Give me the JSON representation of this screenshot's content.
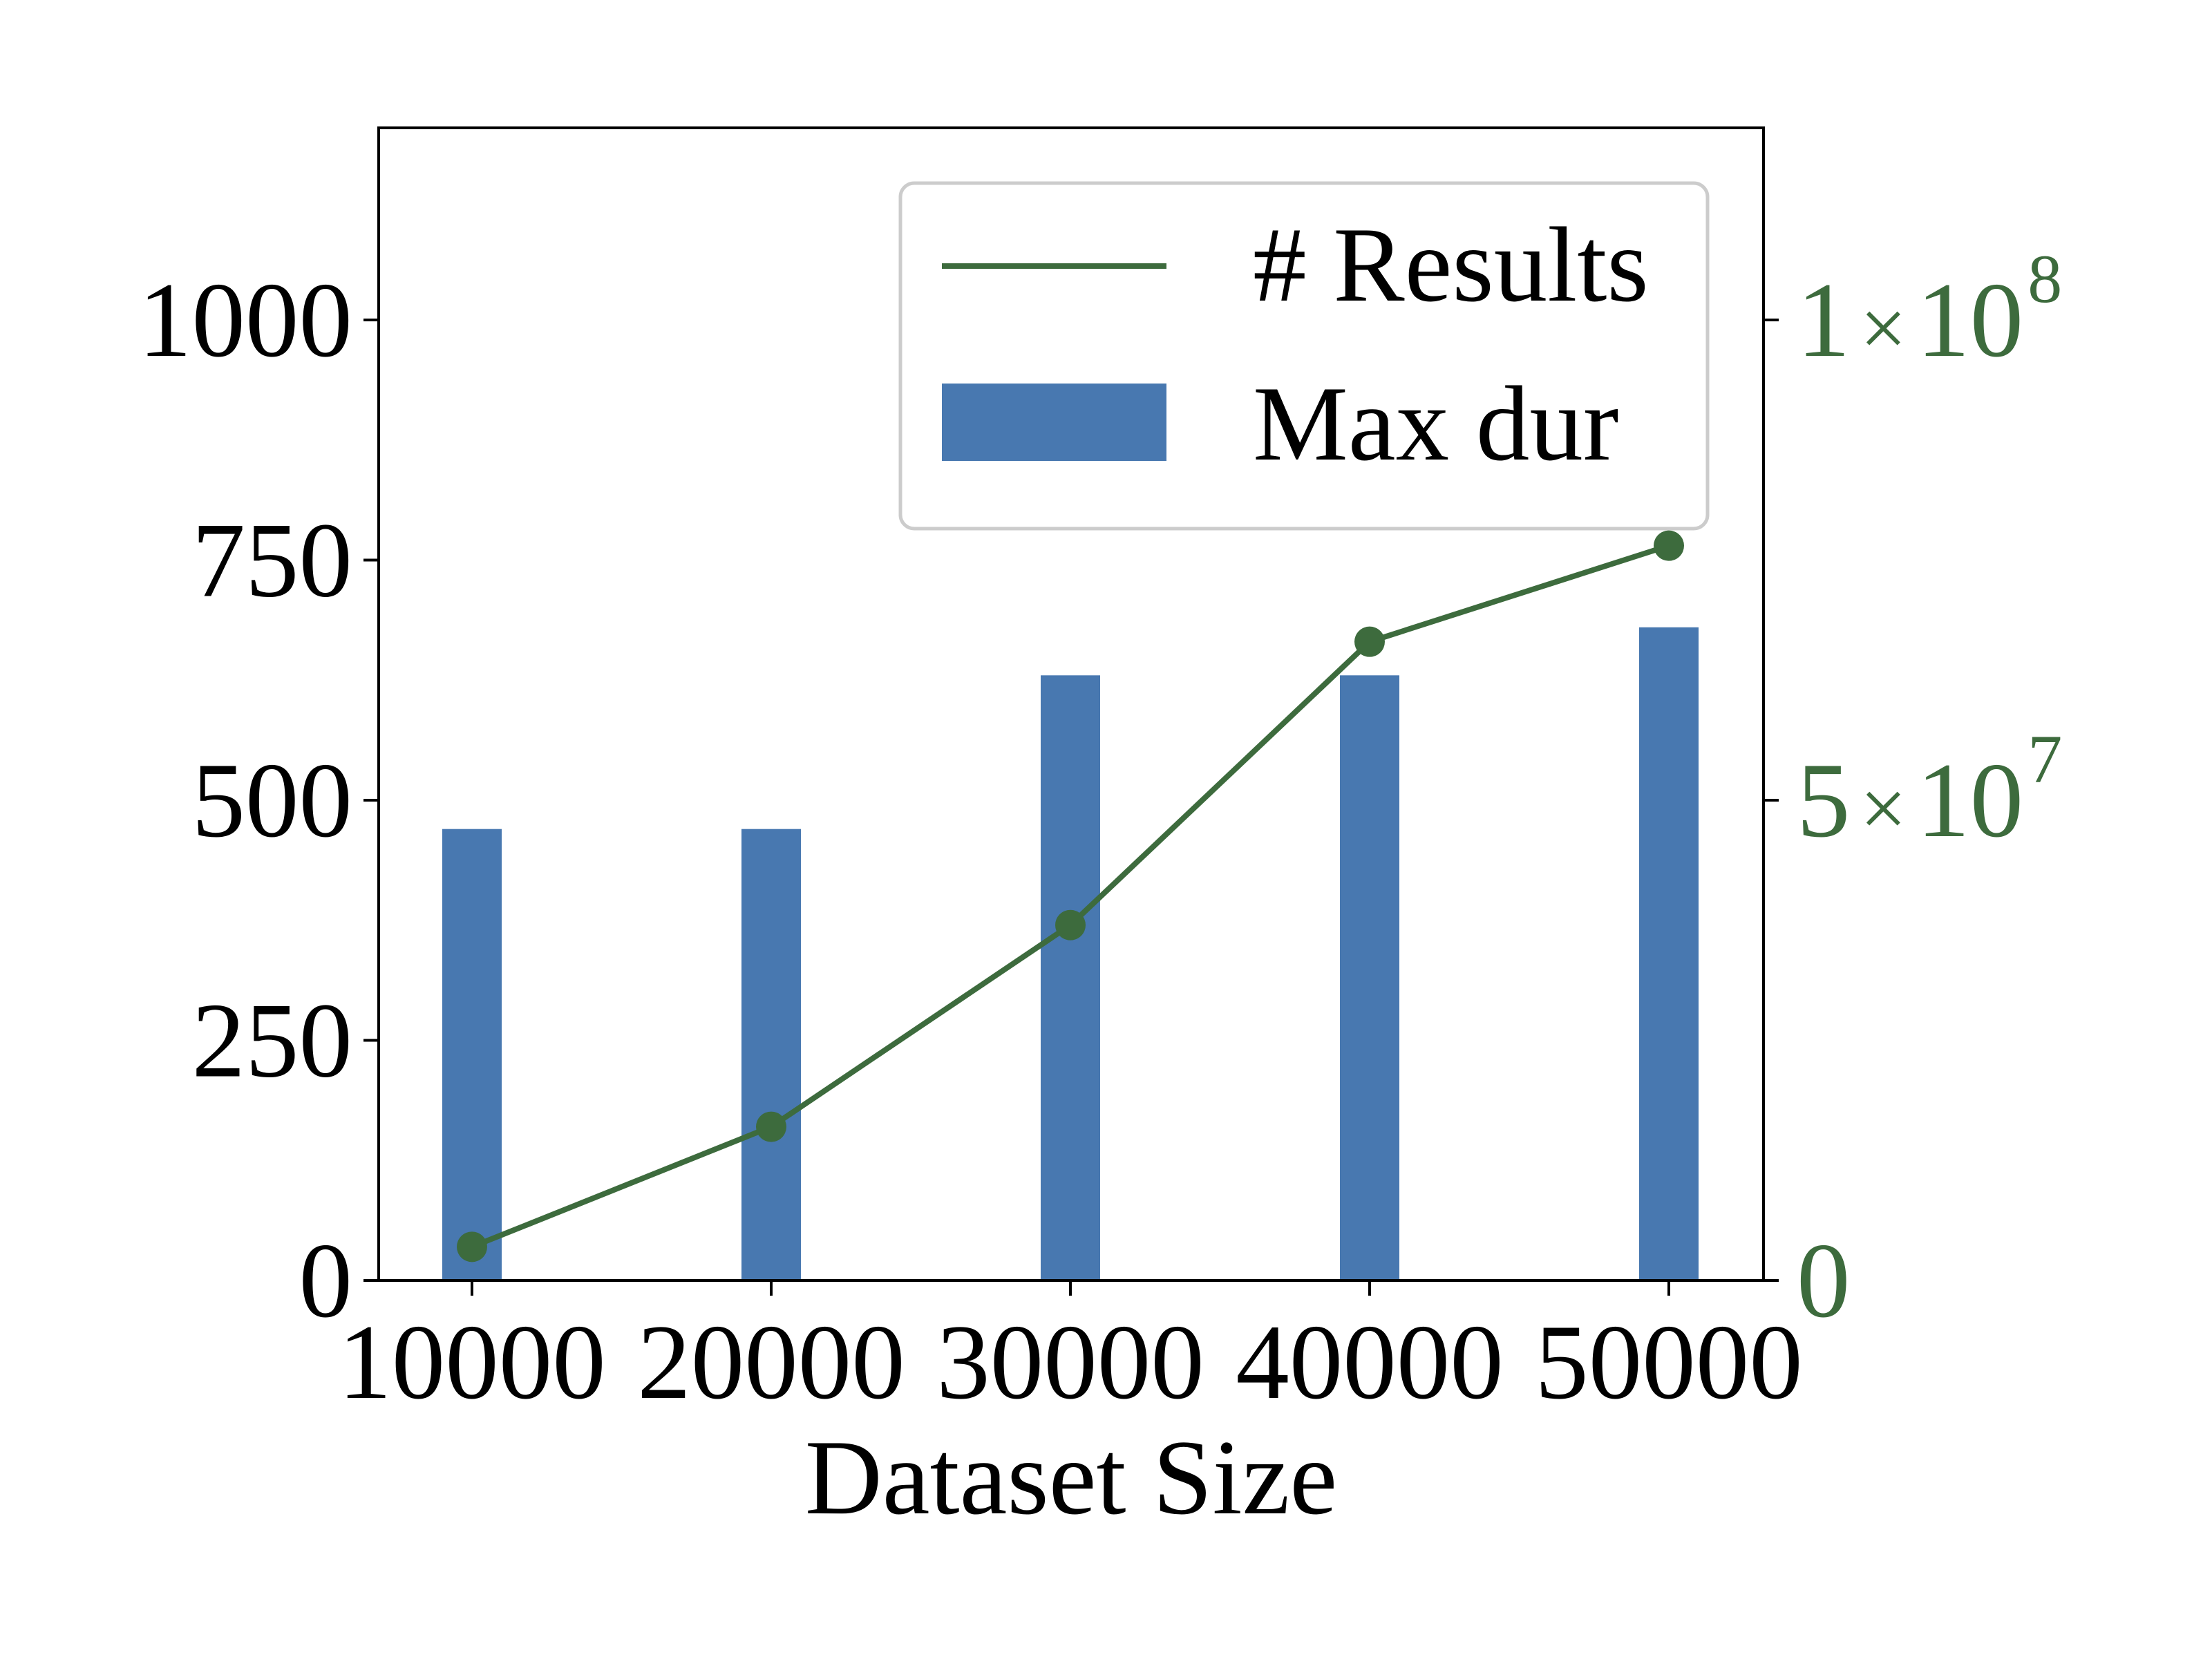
{
  "chart_data": {
    "type": "bar",
    "xlabel": "Dataset Size",
    "categories": [
      "10000",
      "20000",
      "30000",
      "40000",
      "50000"
    ],
    "left_axis": {
      "ylim": [
        0,
        1200
      ],
      "ticks": [
        0,
        250,
        500,
        750,
        1000
      ],
      "tick_labels": [
        "0",
        "250",
        "500",
        "750",
        "1000"
      ]
    },
    "right_axis": {
      "ylim": [
        0,
        120000000
      ],
      "ticks": [
        0,
        50000000,
        100000000
      ],
      "tick_labels": [
        {
          "mantissa": "0",
          "times": "",
          "base": "",
          "exp": ""
        },
        {
          "mantissa": "5",
          "times": "×",
          "base": "10",
          "exp": "7"
        },
        {
          "mantissa": "1",
          "times": "×",
          "base": "10",
          "exp": "8"
        }
      ],
      "color": "#3d6b3d"
    },
    "series": [
      {
        "name": "Max dur",
        "type": "bar",
        "axis": "left",
        "color": "#4878b0",
        "values": [
          470,
          470,
          630,
          630,
          680
        ]
      },
      {
        "name": "# Results",
        "type": "line",
        "axis": "right",
        "color": "#3d6b3d",
        "values": [
          3500000,
          16000000,
          37000000,
          66500000,
          76500000
        ]
      }
    ],
    "legend": {
      "placement": "top-right",
      "entries": [
        {
          "label": "# Results",
          "kind": "line",
          "color": "#3d6b3d"
        },
        {
          "label": "Max dur",
          "kind": "bar",
          "color": "#4878b0"
        }
      ]
    },
    "grid": false
  }
}
